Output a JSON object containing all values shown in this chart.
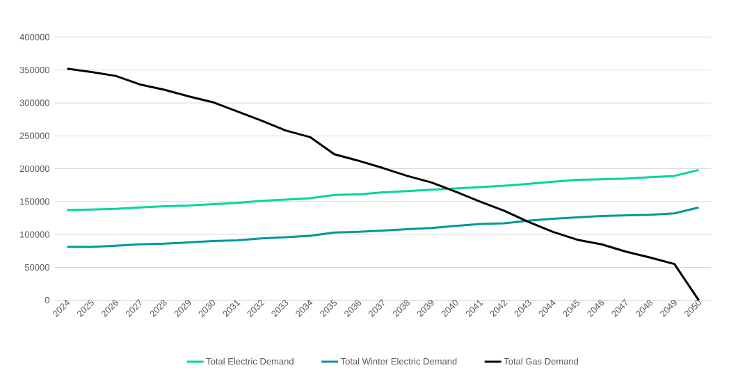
{
  "chart_data": {
    "type": "line",
    "categories": [
      "2024",
      "2025",
      "2026",
      "2027",
      "2028",
      "2029",
      "2030",
      "2031",
      "2032",
      "2033",
      "2034",
      "2035",
      "2036",
      "2037",
      "2038",
      "2039",
      "2040",
      "2041",
      "2042",
      "2043",
      "2044",
      "2045",
      "2046",
      "2047",
      "2048",
      "2049",
      "2050"
    ],
    "series": [
      {
        "name": "Total Electric Demand",
        "color": "#00d5a0",
        "values": [
          137000,
          138000,
          139000,
          141000,
          143000,
          144000,
          146000,
          148000,
          151000,
          153000,
          155000,
          160000,
          161000,
          164000,
          166000,
          168000,
          170000,
          172000,
          174000,
          177000,
          180000,
          183000,
          184000,
          185000,
          187000,
          189000,
          198000
        ]
      },
      {
        "name": "Total Winter Electric Demand",
        "color": "#00979a",
        "values": [
          81000,
          81000,
          83000,
          85000,
          86000,
          88000,
          90000,
          91000,
          94000,
          96000,
          98000,
          103000,
          104000,
          106000,
          108000,
          110000,
          113000,
          116000,
          117000,
          121000,
          124000,
          126000,
          128000,
          129000,
          130000,
          132000,
          141000
        ]
      },
      {
        "name": "Total Gas Demand",
        "color": "#000000",
        "values": [
          352000,
          347000,
          341000,
          328000,
          320000,
          310000,
          301000,
          287000,
          273000,
          258000,
          248000,
          222000,
          212000,
          201000,
          189000,
          179000,
          165000,
          150000,
          136000,
          119000,
          104000,
          92000,
          85000,
          74000,
          65000,
          55000,
          0
        ]
      }
    ],
    "ylim": [
      0,
      400000
    ],
    "yticks": [
      0,
      50000,
      100000,
      150000,
      200000,
      250000,
      300000,
      350000,
      400000
    ],
    "grid": "y",
    "legend": "bottom",
    "marker": "none",
    "line_style": "solid"
  }
}
